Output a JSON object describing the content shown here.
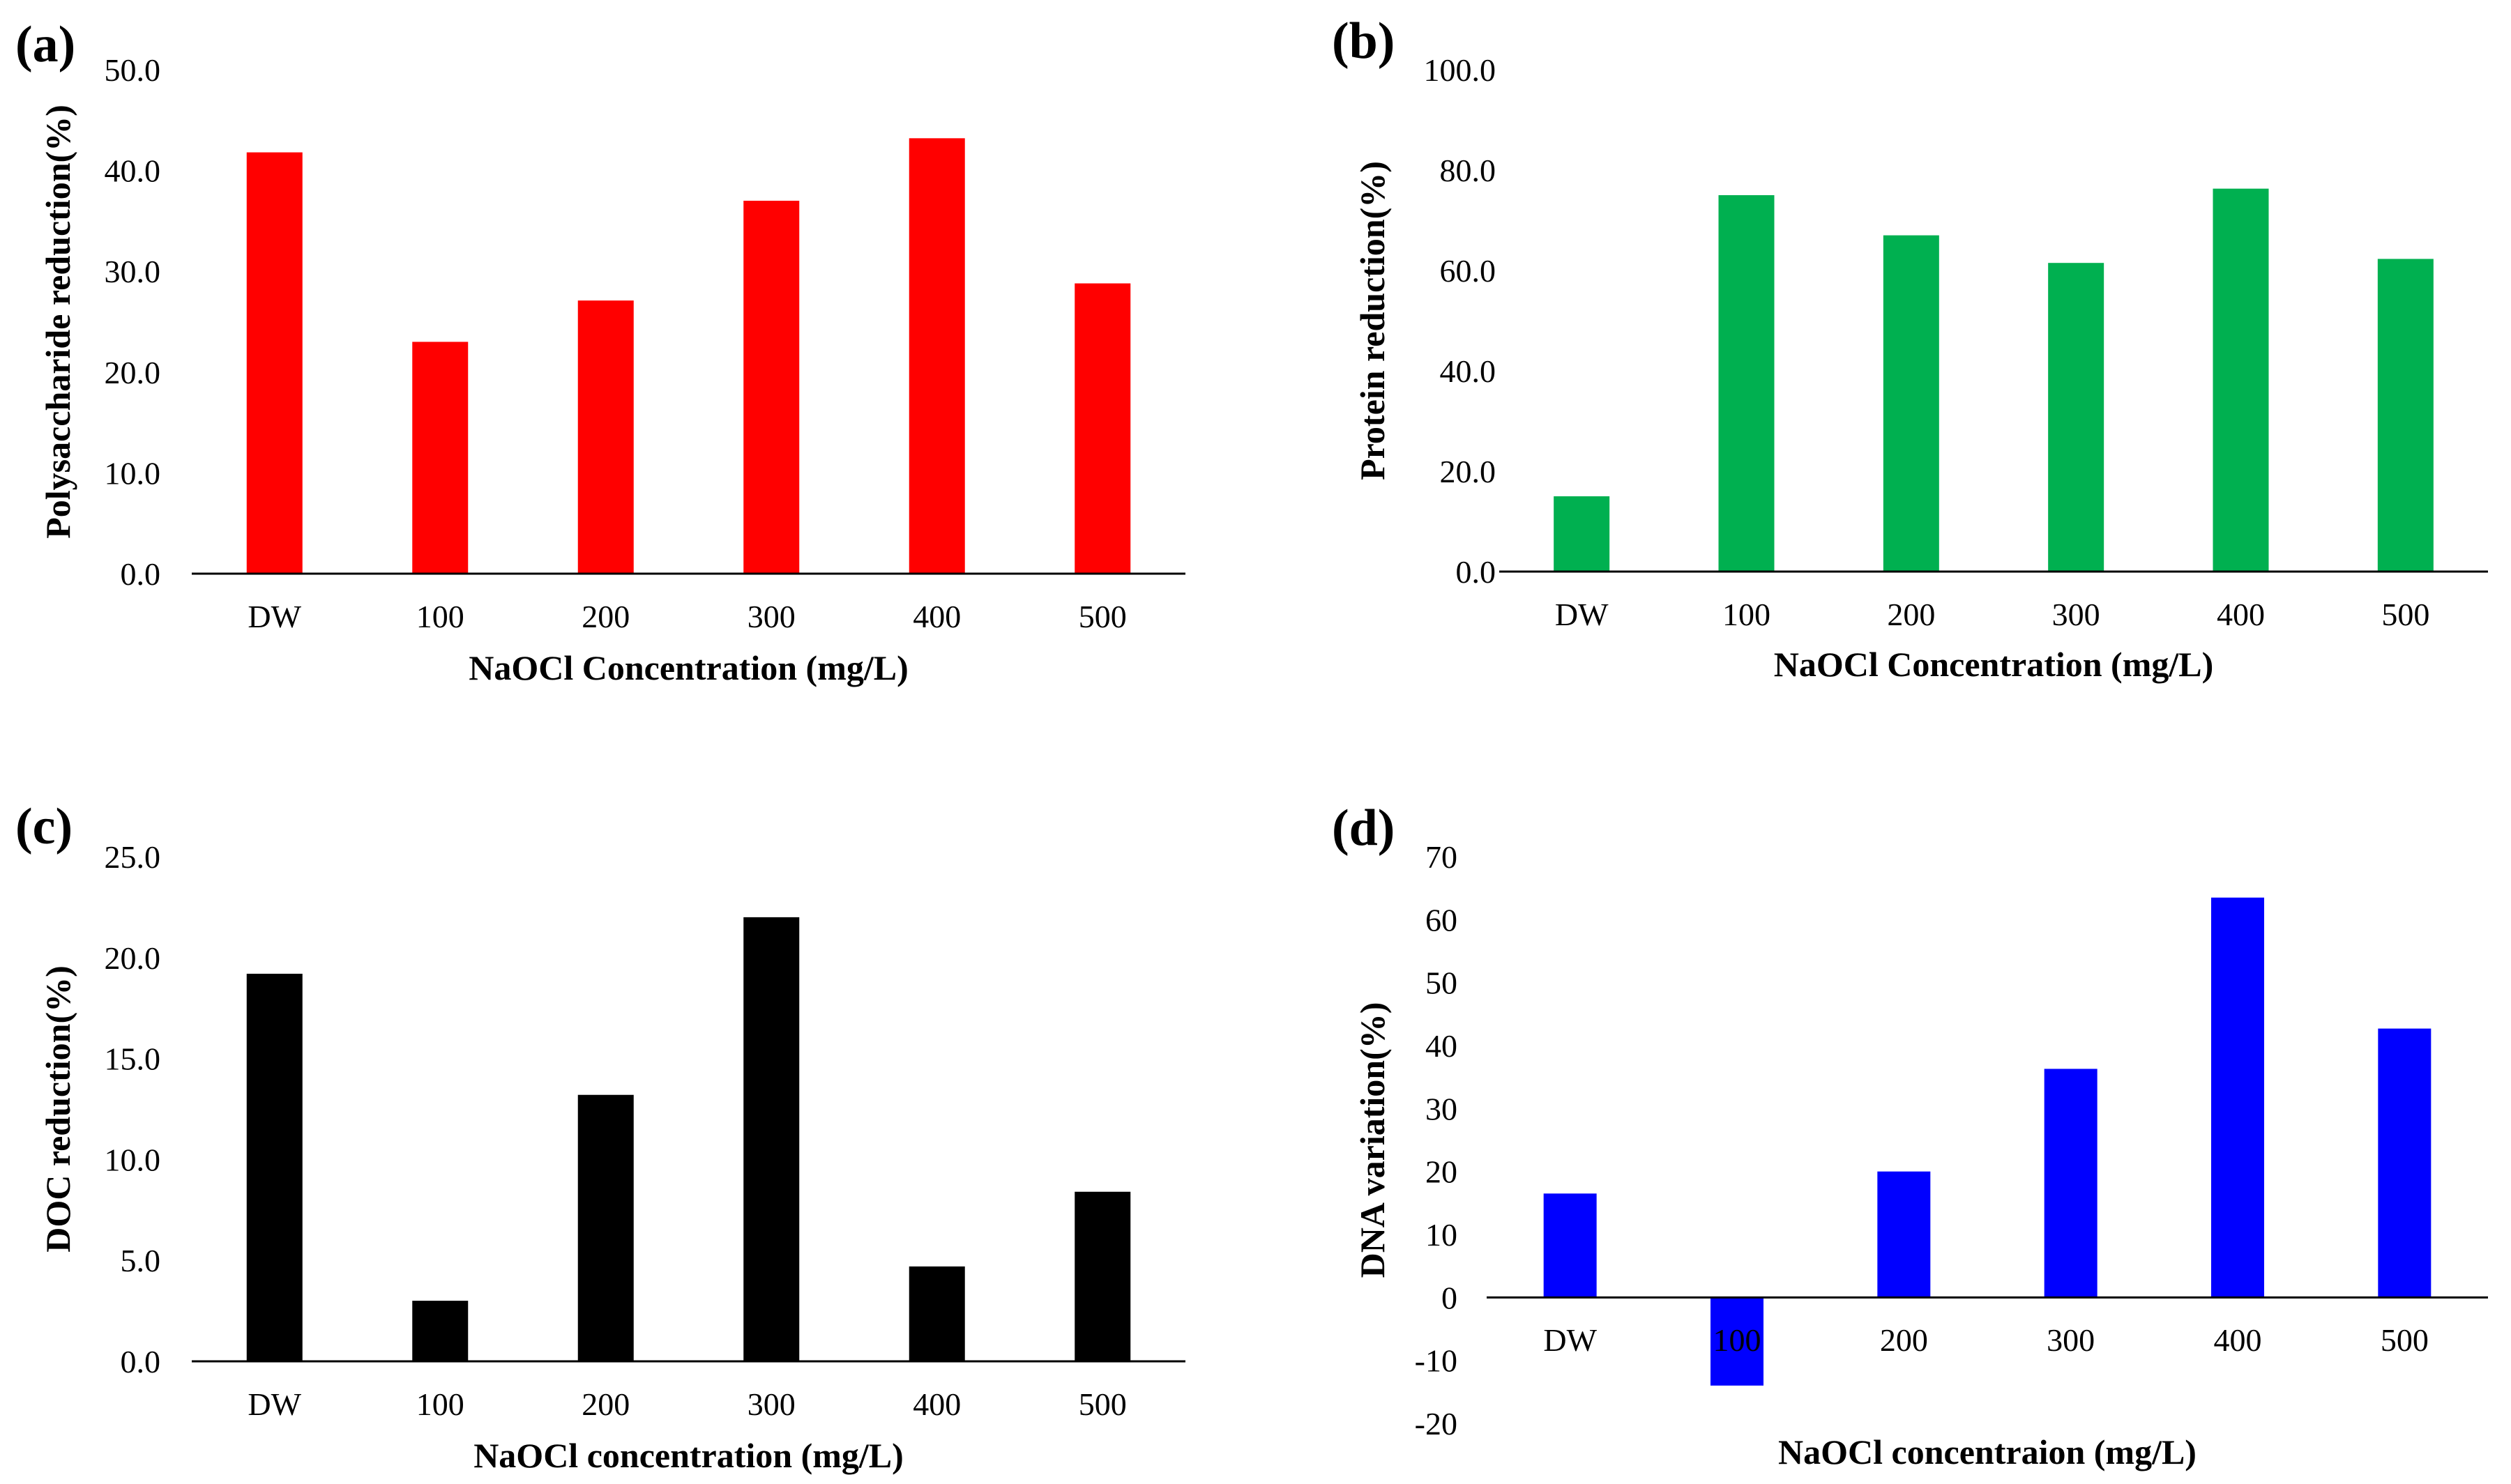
{
  "chart_data": [
    {
      "type": "bar",
      "panel_label": "(a)",
      "categories": [
        "DW",
        "100",
        "200",
        "300",
        "400",
        "500"
      ],
      "values": [
        41.8,
        23.0,
        27.1,
        37.0,
        43.2,
        28.8
      ],
      "xlabel": "NaOCl Concentration  (mg/L)",
      "ylabel": "Polysaccharide reduction(%)",
      "ylim": [
        0,
        50
      ],
      "yticks": [
        "0.0",
        "10.0",
        "20.0",
        "30.0",
        "40.0",
        "50.0"
      ],
      "color": "#ff0000"
    },
    {
      "type": "bar",
      "panel_label": "(b)",
      "categories": [
        "DW",
        "100",
        "200",
        "300",
        "400",
        "500"
      ],
      "values": [
        15.0,
        75.0,
        67.0,
        61.5,
        76.3,
        62.3
      ],
      "xlabel": "NaOCl Concentration  (mg/L)",
      "ylabel": "Protein reduction(%)",
      "ylim": [
        0,
        100
      ],
      "yticks": [
        "0.0",
        "20.0",
        "40.0",
        "60.0",
        "80.0",
        "100.0"
      ],
      "color": "#00b050"
    },
    {
      "type": "bar",
      "panel_label": "(c)",
      "categories": [
        "DW",
        "100",
        "200",
        "300",
        "400",
        "500"
      ],
      "values": [
        19.2,
        3.0,
        13.2,
        22.0,
        4.7,
        8.4
      ],
      "xlabel": "NaOCl concentration  (mg/L)",
      "ylabel": "DOC reduction(%)",
      "ylim": [
        0,
        25
      ],
      "yticks": [
        "0.0",
        "5.0",
        "10.0",
        "15.0",
        "20.0",
        "25.0"
      ],
      "color": "#000000"
    },
    {
      "type": "bar",
      "panel_label": "(d)",
      "categories": [
        "DW",
        "100",
        "200",
        "300",
        "400",
        "500"
      ],
      "values": [
        16.5,
        -14.0,
        20.0,
        36.3,
        63.5,
        42.7
      ],
      "xlabel": "NaOCl concentraion  (mg/L)",
      "ylabel": "DNA variation(%)",
      "ylim": [
        -20,
        70
      ],
      "yticks": [
        "-20",
        "-10",
        "0",
        "10",
        "20",
        "30",
        "40",
        "50",
        "60",
        "70"
      ],
      "color": "#0000ff"
    }
  ]
}
